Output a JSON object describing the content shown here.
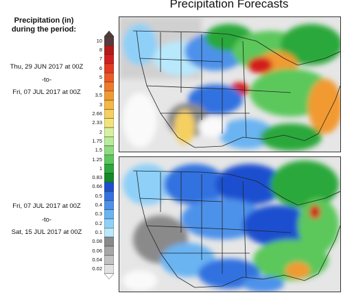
{
  "title": "Precipitation Forecasts",
  "legend": {
    "title_line1": "Precipitation (in)",
    "title_line2": "during the period:",
    "levels": [
      "10",
      "8",
      "7",
      "6",
      "5",
      "4",
      "3.5",
      "3",
      "2.66",
      "2.33",
      "2",
      "1.75",
      "1.5",
      "1.25",
      "1",
      "0.83",
      "0.66",
      "0.5",
      "0.4",
      "0.3",
      "0.2",
      "0.1",
      "0.08",
      "0.06",
      "0.04",
      "0.02"
    ],
    "colors": [
      "#553b3b",
      "#b01a1a",
      "#d41e1e",
      "#e53a22",
      "#ee5a26",
      "#f07a2a",
      "#f29a32",
      "#f5b840",
      "#f5d060",
      "#f2e47a",
      "#d8f0a0",
      "#b8ec9a",
      "#8fdc80",
      "#5cc85c",
      "#2aa83a",
      "#118a2a",
      "#1f4fd0",
      "#3372e0",
      "#4d92ea",
      "#6ab4f2",
      "#8ed0f8",
      "#b8e8fc",
      "#8a8a8a",
      "#a6a6a6",
      "#c2c2c2",
      "#e2e2e2"
    ]
  },
  "periods": [
    {
      "start": "Thu, 29 JUN 2017 at 00Z",
      "sep": "-to-",
      "end": "Fri, 07 JUL 2017 at 00Z"
    },
    {
      "start": "Fri, 07 JUL 2017 at 00Z",
      "sep": "-to-",
      "end": "Sat, 15 JUL 2017 at 00Z"
    }
  ]
}
